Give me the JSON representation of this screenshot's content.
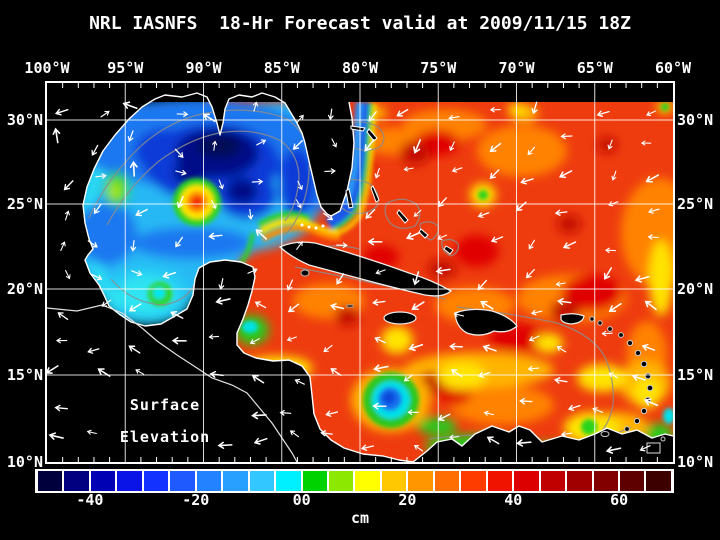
{
  "title": "NRL IASNFS  18-Hr Forecast valid at 2009/11/15 18Z",
  "axes": {
    "lon_labels": [
      "100°W",
      "95°W",
      "90°W",
      "85°W",
      "80°W",
      "75°W",
      "70°W",
      "65°W",
      "60°W"
    ],
    "lat_labels": [
      "30°N",
      "25°N",
      "20°N",
      "15°N",
      "10°N"
    ]
  },
  "map_overlay": {
    "line1": "Surface",
    "line2": "Elevation"
  },
  "colorbar": {
    "unit": "cm",
    "range_cm": [
      -50,
      70
    ],
    "ticks": [
      {
        "label": "-40",
        "pct": 8.33
      },
      {
        "label": "-20",
        "pct": 25
      },
      {
        "label": "00",
        "pct": 41.67
      },
      {
        "label": "20",
        "pct": 58.33
      },
      {
        "label": "40",
        "pct": 75
      },
      {
        "label": "60",
        "pct": 91.67
      }
    ],
    "segment_colors": [
      "#00003c",
      "#000080",
      "#0000b4",
      "#0a14e6",
      "#1432ff",
      "#1e5aff",
      "#2382ff",
      "#28a0ff",
      "#32c8ff",
      "#00f0ff",
      "#00d200",
      "#8ce800",
      "#ffff00",
      "#ffc800",
      "#ff9600",
      "#ff6e00",
      "#ff3c00",
      "#f01400",
      "#dc0000",
      "#c00000",
      "#a00000",
      "#820000",
      "#5f0000",
      "#3c0000"
    ]
  },
  "colors": {
    "background": "#000000",
    "frame": "#ffffff",
    "grid": "#ffffff",
    "land": "#000000",
    "coastline": "#ffffff",
    "bathymetry_contour": "#8c8c8c",
    "arrows": "#ffffff",
    "warm_base": "#ee3c0e",
    "cool_base": "#28b8f4"
  }
}
